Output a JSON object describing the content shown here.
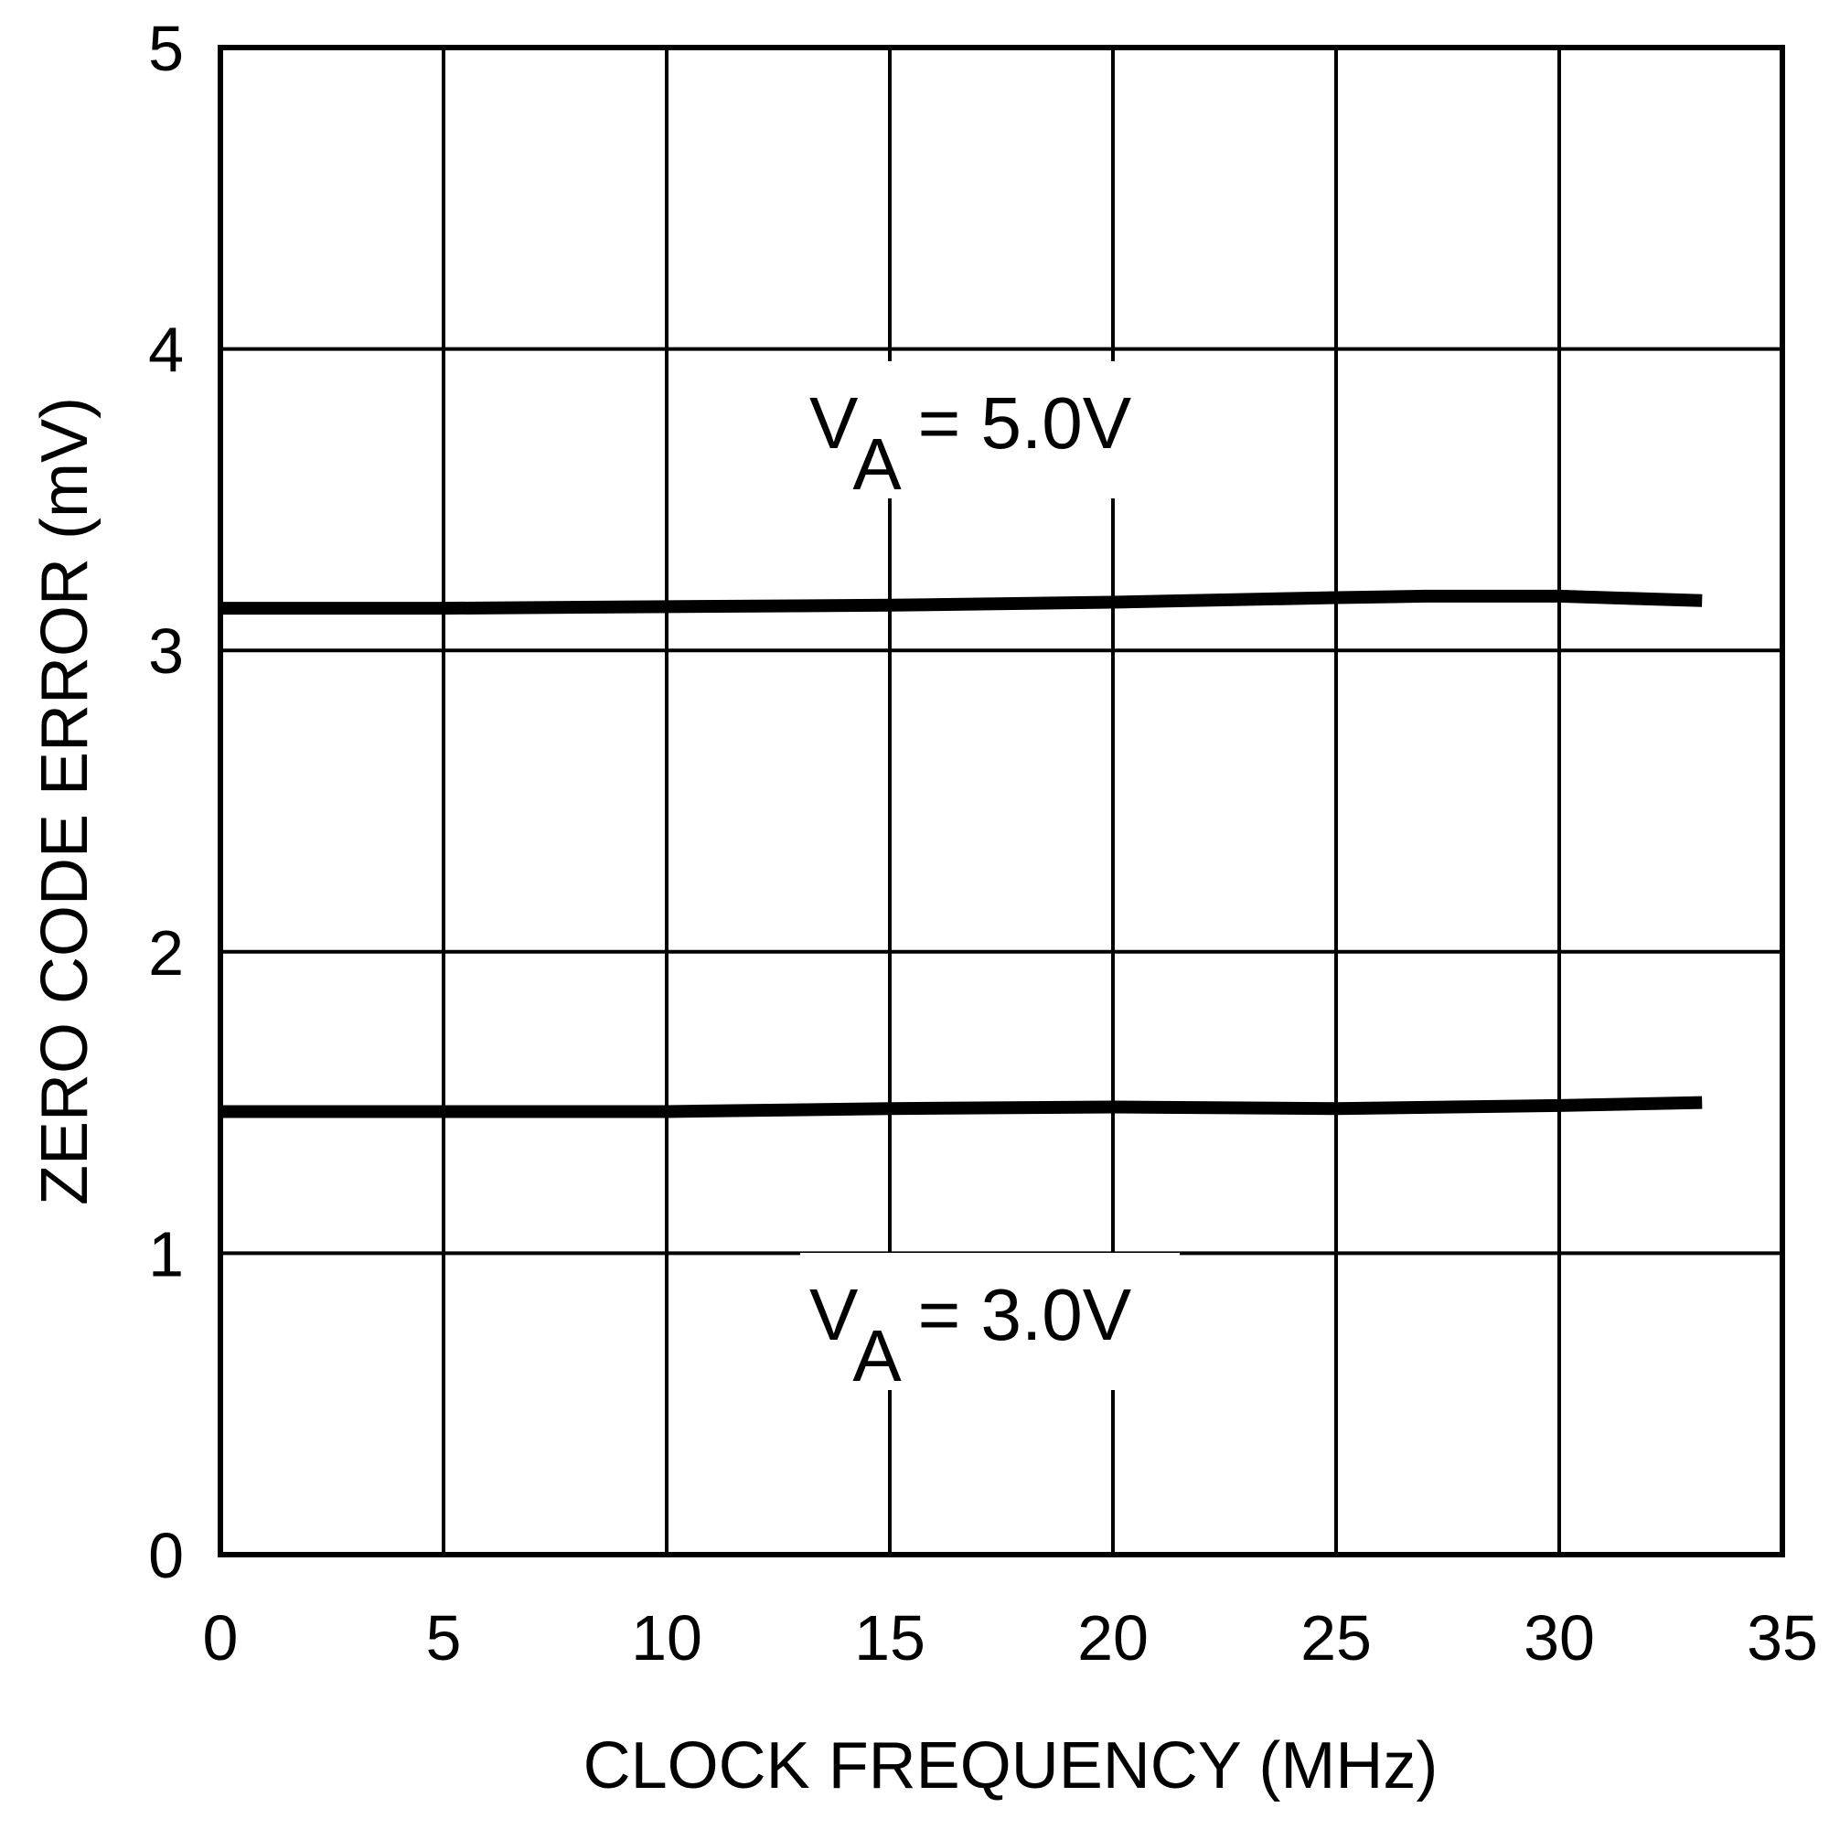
{
  "chart_data": {
    "type": "line",
    "title": "",
    "xlabel": "CLOCK FREQUENCY (MHz)",
    "ylabel": "ZERO CODE ERROR (mV)",
    "xlim": [
      0,
      35
    ],
    "ylim": [
      0,
      5
    ],
    "xticks": [
      0,
      5,
      10,
      15,
      20,
      25,
      30,
      35
    ],
    "yticks": [
      0,
      1,
      2,
      3,
      4,
      5
    ],
    "grid": true,
    "legend": "none (inline annotations)",
    "series": [
      {
        "name": "VA = 5.0V",
        "label_main": "V",
        "label_sub": "A",
        "label_rest": " = 5.0V",
        "x": [
          0,
          5,
          10,
          15,
          20,
          25,
          27,
          30,
          33.2
        ],
        "y": [
          3.14,
          3.14,
          3.145,
          3.15,
          3.16,
          3.175,
          3.18,
          3.18,
          3.165
        ]
      },
      {
        "name": "VA = 3.0V",
        "label_main": "V",
        "label_sub": "A",
        "label_rest": " = 3.0V",
        "x": [
          0,
          5,
          10,
          15,
          20,
          25,
          30,
          33.2
        ],
        "y": [
          1.47,
          1.47,
          1.47,
          1.48,
          1.485,
          1.48,
          1.49,
          1.5
        ]
      }
    ]
  }
}
